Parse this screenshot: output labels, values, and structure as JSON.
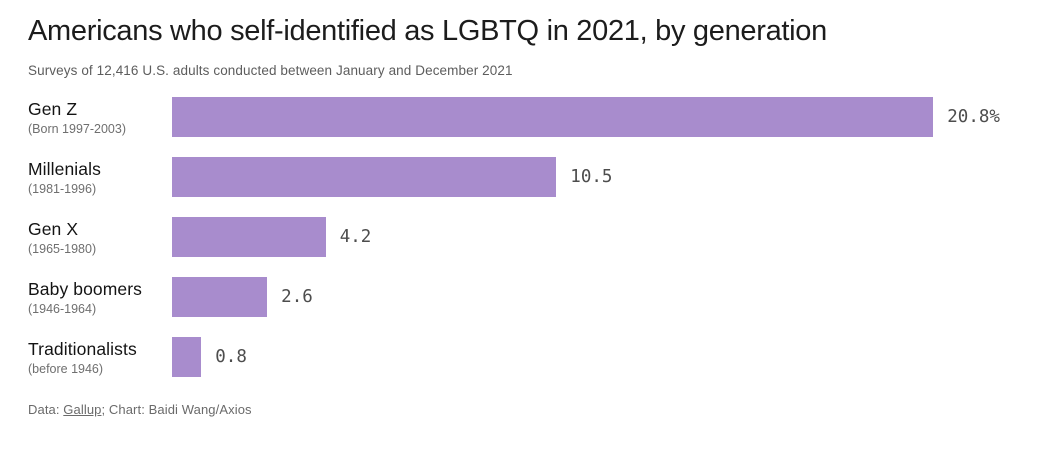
{
  "header": {
    "title": "Americans who self-identified as LGBTQ in 2021, by generation",
    "subtitle": "Surveys of 12,416 U.S. adults conducted between January and December 2021"
  },
  "chart_data": {
    "type": "bar",
    "orientation": "horizontal",
    "title": "Americans who self-identified as LGBTQ in 2021, by generation",
    "subtitle": "Surveys of 12,416 U.S. adults conducted between January and December 2021",
    "categories": [
      "Gen Z",
      "Millenials",
      "Gen X",
      "Baby boomers",
      "Traditionalists"
    ],
    "category_sublabels": [
      "(Born 1997-2003)",
      "(1981-1996)",
      "(1965-1980)",
      "(1946-1964)",
      "(before 1946)"
    ],
    "values": [
      20.8,
      10.5,
      4.2,
      2.6,
      0.8
    ],
    "value_labels": [
      "20.8%",
      "10.5",
      "4.2",
      "2.6",
      "0.8"
    ],
    "unit": "percent",
    "xlim": [
      0,
      20.8
    ],
    "grid": false,
    "legend": false,
    "bar_color": "#a88ccd"
  },
  "footer": {
    "prefix": "Data: ",
    "link_label": "Gallup",
    "suffix": "; Chart: Baidi Wang/Axios"
  }
}
